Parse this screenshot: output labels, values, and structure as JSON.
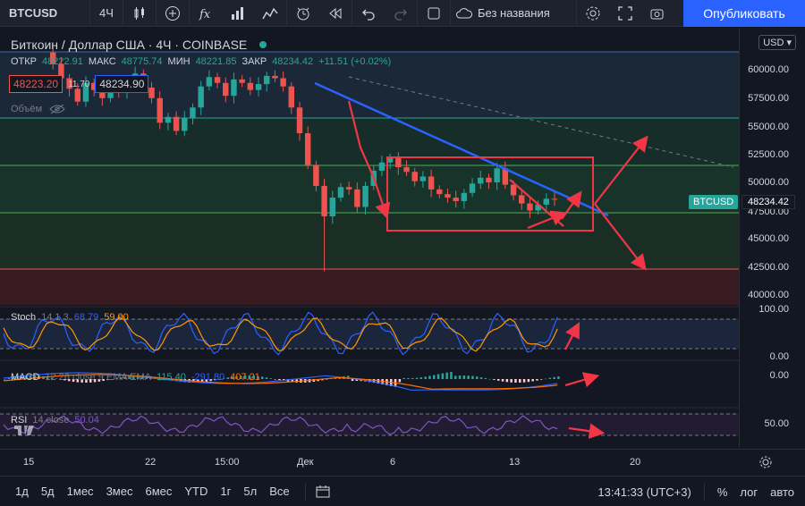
{
  "toolbar": {
    "symbol": "BTCUSD",
    "interval": "4Ч",
    "layout_name": "Без названия",
    "publish_label": "Опубликовать",
    "icons": [
      "search-icon",
      "candles-icon",
      "add-icon",
      "fx-icon",
      "compare-icon",
      "indicators-icon",
      "alert-icon",
      "replay-icon",
      "undo-icon",
      "redo-icon",
      "fullscreen-icon",
      "layout-icon",
      "settings-icon",
      "screenshot-icon"
    ]
  },
  "legend": {
    "title": "Биткоин / Доллар США · 4Ч · COINBASE",
    "open_label": "ОТКР",
    "open": "48222.91",
    "high_label": "МАКС",
    "high": "48775.74",
    "low_label": "МИН",
    "low": "48221.85",
    "close_label": "ЗАКР",
    "close": "48234.42",
    "change": "+11.51 (+0.02%)",
    "bid": "48223.20",
    "spread": "11.70",
    "ask": "48234.90",
    "volume_label": "Объём"
  },
  "indicators": {
    "stoch": {
      "name": "Stoch",
      "params": "14 1 3",
      "k": "68.79",
      "d": "59.00"
    },
    "macd": {
      "name": "MACD",
      "params": "12 26 close 9 EMA EMA",
      "macd": "115.40",
      "signal": "-291.80",
      "hist": "407.21"
    },
    "rsi": {
      "name": "RSI",
      "params": "14 close",
      "value": "50.04"
    }
  },
  "price_axis": {
    "currency": "USD",
    "labels": [
      "60000.00",
      "57500.00",
      "55000.00",
      "52500.00",
      "50000.00",
      "47500.00",
      "45000.00",
      "42500.00",
      "40000.00"
    ],
    "current_price": "48234.42",
    "symbol_tag": "BTCUSD",
    "stoch_labels": [
      "100.00",
      "0.00"
    ],
    "macd_labels": [
      "0.00"
    ],
    "rsi_labels": [
      "50.00"
    ]
  },
  "time_axis": {
    "labels": [
      "15",
      "22",
      "15:00",
      "Дек",
      "6",
      "13",
      "20"
    ]
  },
  "bottom_bar": {
    "ranges": [
      "1д",
      "5д",
      "1мес",
      "3мес",
      "6мес",
      "YTD",
      "1г",
      "5л",
      "Все"
    ],
    "clock": "13:41:33 (UTC+3)",
    "percent": "%",
    "log": "лог",
    "auto": "авто"
  },
  "colors": {
    "up": "#26a69a",
    "down": "#ef5350",
    "accent": "#2962ff",
    "annotation": "#f23645",
    "trendline": "#2962ff"
  },
  "chart_data": {
    "type": "candlestick",
    "symbol": "BTCUSD",
    "ylim": [
      40000,
      62000
    ],
    "closes": [
      60800,
      59800,
      58600,
      57700,
      56600,
      58200,
      57600,
      56900,
      58100,
      57400,
      58400,
      59000,
      57800,
      56900,
      54800,
      55300,
      54100,
      55200,
      56100,
      57900,
      58700,
      58200,
      57100,
      58500,
      58200,
      57600,
      58100,
      58800,
      58600,
      57900,
      56100,
      53900,
      51200,
      49400,
      46800,
      48400,
      49300,
      49100,
      47600,
      49400,
      50700,
      51400,
      51800,
      51000,
      50600,
      49800,
      50200,
      49100,
      48700,
      48400,
      48100,
      48800,
      49600,
      50100,
      49700,
      50900,
      49500,
      48600,
      47900,
      47300,
      47800,
      48300,
      48234
    ]
  }
}
